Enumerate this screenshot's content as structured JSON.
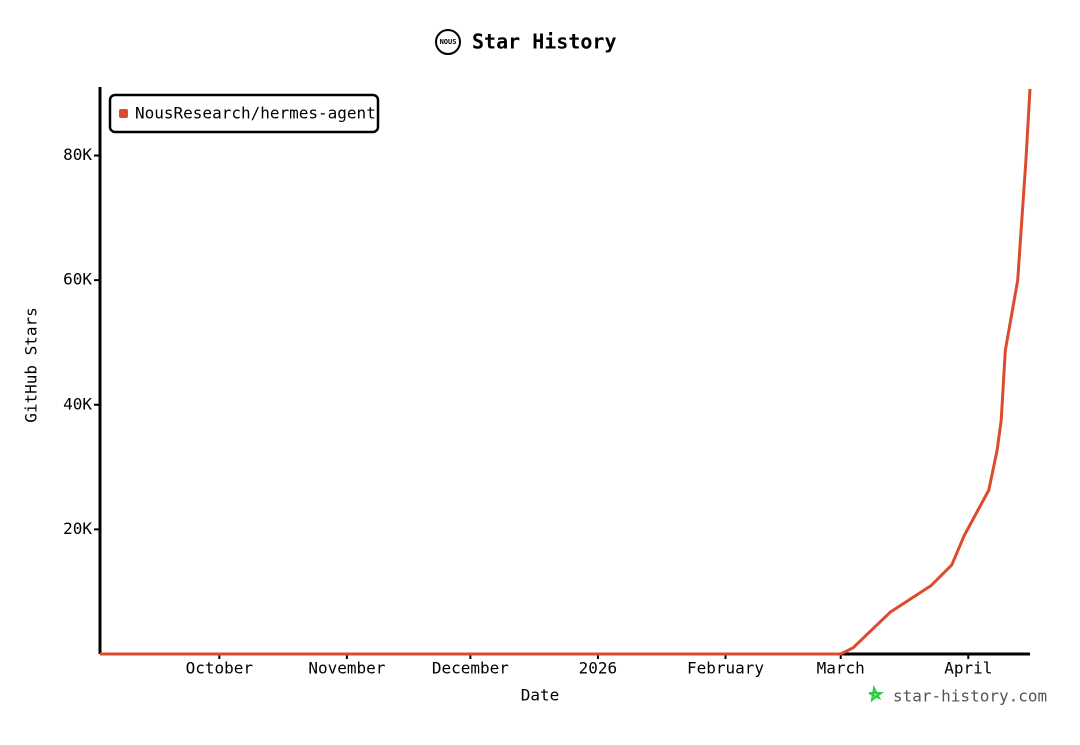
{
  "chart_data": {
    "type": "line",
    "title": "Star History",
    "logo": "NOUS",
    "x_label": "Date",
    "y_label": "GitHub Stars",
    "watermark": "star-history.com",
    "xlim": [
      "2025-09-02",
      "2026-04-16"
    ],
    "xticks": [
      {
        "value": "2025-10-01",
        "label": "October"
      },
      {
        "value": "2025-11-01",
        "label": "November"
      },
      {
        "value": "2025-12-01",
        "label": "December"
      },
      {
        "value": "2026-01-01",
        "label": "2026"
      },
      {
        "value": "2026-02-01",
        "label": "February"
      },
      {
        "value": "2026-03-01",
        "label": "March"
      },
      {
        "value": "2026-04-01",
        "label": "April"
      }
    ],
    "ylim": [
      0,
      91000
    ],
    "yticks": [
      {
        "value": 20000,
        "label": "20K"
      },
      {
        "value": 40000,
        "label": "40K"
      },
      {
        "value": 60000,
        "label": "60K"
      },
      {
        "value": 80000,
        "label": "80K"
      }
    ],
    "legend": "top-left",
    "x": [
      "2025-09-02",
      "2026-03-01",
      "2026-03-04",
      "2026-03-13",
      "2026-03-23",
      "2026-03-28",
      "2026-03-31",
      "2026-04-06",
      "2026-04-08",
      "2026-04-09",
      "2026-04-10",
      "2026-04-13",
      "2026-04-14",
      "2026-04-15",
      "2026-04-16"
    ],
    "series": [
      {
        "name": "NousResearch/hermes-agent",
        "color": "#dd4b2e",
        "values": [
          0,
          0,
          1000,
          6700,
          11000,
          14300,
          19000,
          26300,
          32700,
          37500,
          48700,
          60000,
          69600,
          79200,
          90700
        ]
      }
    ]
  }
}
